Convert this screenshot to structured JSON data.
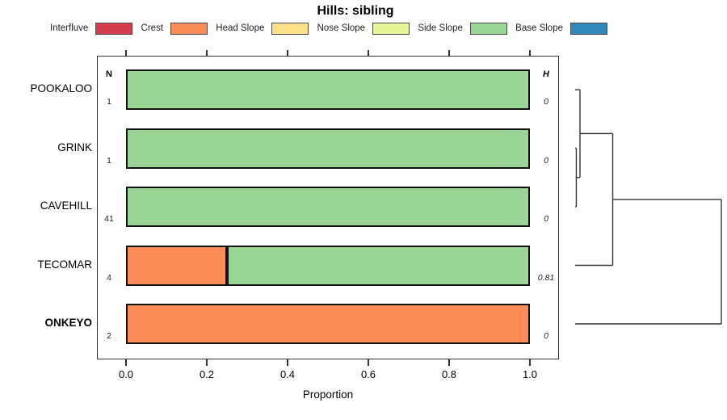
{
  "title": "Hills: sibling",
  "legend": [
    {
      "label": "Interfluve",
      "color": "#D53E4F"
    },
    {
      "label": "Crest",
      "color": "#FC8D59"
    },
    {
      "label": "Head Slope",
      "color": "#FEE08B"
    },
    {
      "label": "Nose Slope",
      "color": "#E6F598"
    },
    {
      "label": "Side Slope",
      "color": "#99D594"
    },
    {
      "label": "Base Slope",
      "color": "#3288BD"
    }
  ],
  "columns": {
    "n": "N",
    "h": "H"
  },
  "chart_data": {
    "type": "bar",
    "orientation": "horizontal",
    "stacked": true,
    "title": "Hills: sibling",
    "xlabel": "Proportion",
    "xlim": [
      0,
      1
    ],
    "x_ticks": [
      0.0,
      0.2,
      0.4,
      0.6,
      0.8,
      1.0
    ],
    "x_tick_labels": [
      "0.0",
      "0.2",
      "0.4",
      "0.6",
      "0.8",
      "1.0"
    ],
    "legend_position": "top",
    "grid": false,
    "categories": [
      "POOKALOO",
      "GRINK",
      "CAVEHILL",
      "TECOMAR",
      "ONKEYO"
    ],
    "palette": {
      "Interfluve": "#D53E4F",
      "Crest": "#FC8D59",
      "Head Slope": "#FEE08B",
      "Nose Slope": "#E6F598",
      "Side Slope": "#99D594",
      "Base Slope": "#3288BD"
    },
    "rows": [
      {
        "label": "POOKALOO",
        "n": "1",
        "h": "0",
        "emphasis": false,
        "segments": [
          {
            "class": "Side Slope",
            "value": 1.0
          }
        ]
      },
      {
        "label": "GRINK",
        "n": "1",
        "h": "0",
        "emphasis": false,
        "segments": [
          {
            "class": "Side Slope",
            "value": 1.0
          }
        ]
      },
      {
        "label": "CAVEHILL",
        "n": "41",
        "h": "0",
        "emphasis": false,
        "segments": [
          {
            "class": "Side Slope",
            "value": 1.0
          }
        ]
      },
      {
        "label": "TECOMAR",
        "n": "4",
        "h": "0.81",
        "emphasis": false,
        "segments": [
          {
            "class": "Crest",
            "value": 0.25
          },
          {
            "class": "Side Slope",
            "value": 0.75
          }
        ]
      },
      {
        "label": "ONKEYO",
        "n": "2",
        "h": "0",
        "emphasis": true,
        "segments": [
          {
            "class": "Crest",
            "value": 1.0
          }
        ]
      }
    ],
    "dendrogram": {
      "leaves": [
        "POOKALOO",
        "GRINK",
        "CAVEHILL",
        "TECOMAR",
        "ONKEYO"
      ],
      "merges": [
        {
          "children": [
            "leaf:1",
            "leaf:2"
          ],
          "height": 0.008
        },
        {
          "children": [
            "leaf:0",
            "merge:0"
          ],
          "height": 0.033
        },
        {
          "children": [
            "merge:1",
            "leaf:3"
          ],
          "height": 0.257
        },
        {
          "children": [
            "merge:2",
            "leaf:4"
          ],
          "height": 1.0
        }
      ]
    }
  }
}
